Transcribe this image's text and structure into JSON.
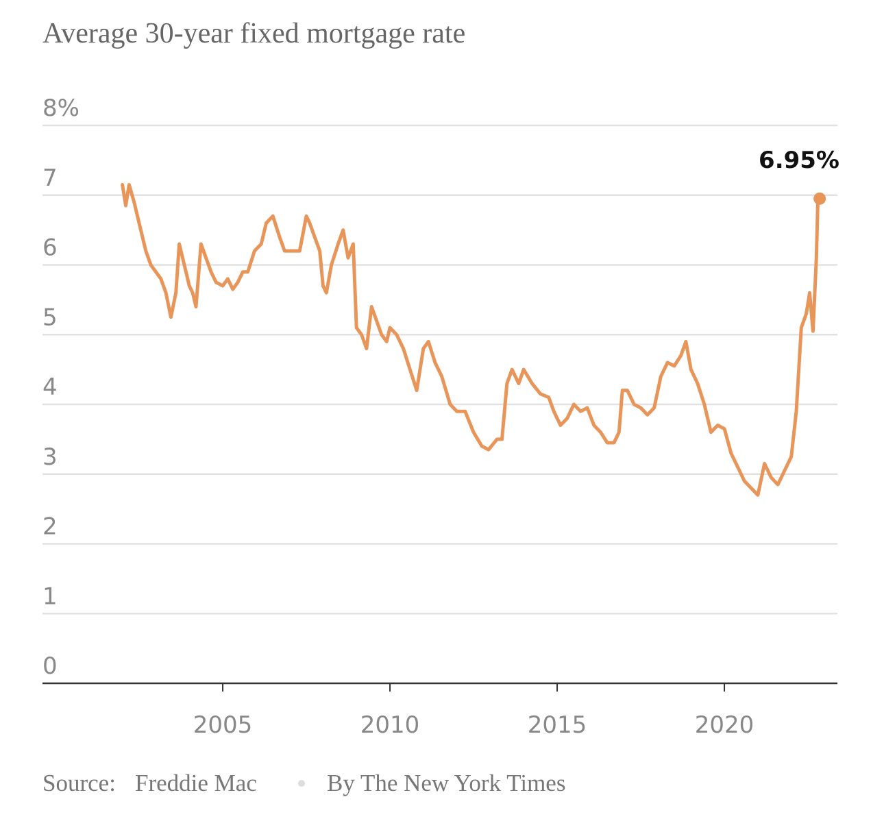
{
  "chart_data": {
    "type": "line",
    "title": "Average 30-year fixed mortgage rate",
    "source_label": "Source:",
    "source": "Freddie Mac",
    "byline": "By The New York Times",
    "color": "#e8955a",
    "x": [
      2002.0,
      2002.1,
      2002.2,
      2002.35,
      2002.5,
      2002.7,
      2002.85,
      2003.0,
      2003.15,
      2003.3,
      2003.45,
      2003.6,
      2003.7,
      2003.8,
      2003.9,
      2004.0,
      2004.1,
      2004.2,
      2004.35,
      2004.5,
      2004.65,
      2004.8,
      2005.0,
      2005.15,
      2005.3,
      2005.45,
      2005.6,
      2005.75,
      2005.95,
      2006.15,
      2006.3,
      2006.5,
      2006.7,
      2006.85,
      2007.0,
      2007.15,
      2007.3,
      2007.5,
      2007.6,
      2007.75,
      2007.9,
      2008.0,
      2008.1,
      2008.25,
      2008.45,
      2008.6,
      2008.75,
      2008.9,
      2009.0,
      2009.15,
      2009.3,
      2009.45,
      2009.6,
      2009.75,
      2009.9,
      2010.0,
      2010.2,
      2010.4,
      2010.6,
      2010.8,
      2011.0,
      2011.15,
      2011.35,
      2011.55,
      2011.8,
      2012.0,
      2012.25,
      2012.5,
      2012.75,
      2012.95,
      2013.2,
      2013.35,
      2013.5,
      2013.65,
      2013.85,
      2014.0,
      2014.25,
      2014.5,
      2014.75,
      2014.9,
      2015.1,
      2015.3,
      2015.5,
      2015.7,
      2015.9,
      2016.1,
      2016.3,
      2016.5,
      2016.7,
      2016.85,
      2016.95,
      2017.1,
      2017.3,
      2017.5,
      2017.7,
      2017.9,
      2018.1,
      2018.3,
      2018.5,
      2018.7,
      2018.85,
      2019.0,
      2019.2,
      2019.4,
      2019.6,
      2019.8,
      2020.0,
      2020.2,
      2020.4,
      2020.6,
      2020.8,
      2021.0,
      2021.2,
      2021.4,
      2021.6,
      2021.8,
      2022.0,
      2022.15,
      2022.3,
      2022.45,
      2022.55,
      2022.65,
      2022.75,
      2022.8,
      2022.85
    ],
    "values": [
      7.15,
      6.85,
      7.15,
      6.9,
      6.6,
      6.2,
      6.0,
      5.9,
      5.8,
      5.6,
      5.25,
      5.6,
      6.3,
      6.1,
      5.9,
      5.7,
      5.6,
      5.4,
      6.3,
      6.1,
      5.9,
      5.75,
      5.7,
      5.8,
      5.65,
      5.75,
      5.9,
      5.9,
      6.2,
      6.3,
      6.6,
      6.7,
      6.4,
      6.2,
      6.2,
      6.2,
      6.2,
      6.7,
      6.6,
      6.4,
      6.2,
      5.7,
      5.6,
      6.0,
      6.3,
      6.5,
      6.1,
      6.3,
      5.1,
      5.0,
      4.8,
      5.4,
      5.2,
      5.0,
      4.9,
      5.1,
      5.0,
      4.8,
      4.5,
      4.2,
      4.8,
      4.9,
      4.6,
      4.4,
      4.0,
      3.9,
      3.9,
      3.6,
      3.4,
      3.35,
      3.5,
      3.5,
      4.3,
      4.5,
      4.3,
      4.5,
      4.3,
      4.15,
      4.1,
      3.9,
      3.7,
      3.8,
      4.0,
      3.9,
      3.95,
      3.7,
      3.6,
      3.45,
      3.45,
      3.6,
      4.2,
      4.2,
      4.0,
      3.95,
      3.85,
      3.95,
      4.4,
      4.6,
      4.55,
      4.7,
      4.9,
      4.5,
      4.3,
      4.0,
      3.6,
      3.7,
      3.65,
      3.3,
      3.1,
      2.9,
      2.8,
      2.7,
      3.15,
      2.95,
      2.85,
      3.05,
      3.25,
      3.9,
      5.1,
      5.3,
      5.6,
      5.05,
      6.1,
      7.0,
      6.95
    ],
    "xlim": [
      1999.61,
      2023.38
    ],
    "xticks": [
      2005,
      2010,
      2015,
      2020
    ],
    "ylim": [
      0,
      8
    ],
    "yticks": [
      0,
      1,
      2,
      3,
      4,
      5,
      6,
      7,
      {
        "value": 8,
        "label": "8%"
      }
    ],
    "grid": true,
    "annotations": [
      {
        "x": 2022.85,
        "y": 6.95,
        "label": "6.95%"
      }
    ]
  }
}
